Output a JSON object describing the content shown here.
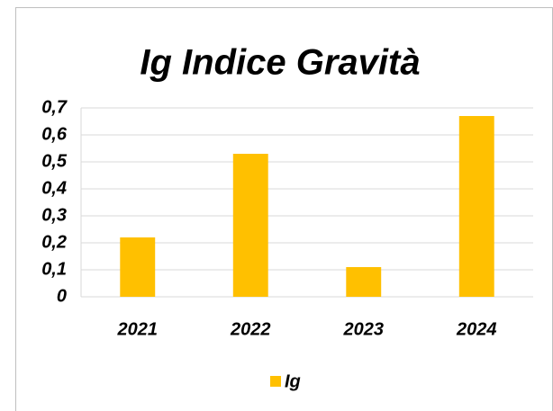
{
  "chart_data": {
    "type": "bar",
    "title": "Ig Indice Gravità",
    "categories": [
      "2021",
      "2022",
      "2023",
      "2024"
    ],
    "series": [
      {
        "name": "Ig",
        "color": "#FFC000",
        "values": [
          0.22,
          0.53,
          0.11,
          0.67
        ]
      }
    ],
    "ylim": [
      0,
      0.7
    ],
    "yticks": [
      0,
      {
        "value": 0.1,
        "label": "0,1"
      },
      {
        "value": 0.2,
        "label": "0,2"
      },
      {
        "value": 0.3,
        "label": "0,3"
      },
      {
        "value": 0.4,
        "label": "0,4"
      },
      {
        "value": 0.5,
        "label": "0,5"
      },
      {
        "value": 0.6,
        "label": "0,6"
      },
      {
        "value": 0.7,
        "label": "0,7"
      }
    ],
    "grid": true,
    "legend": "bottom"
  }
}
